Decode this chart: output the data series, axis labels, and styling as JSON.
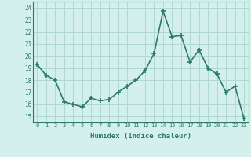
{
  "x": [
    0,
    1,
    2,
    3,
    4,
    5,
    6,
    7,
    8,
    9,
    10,
    11,
    12,
    13,
    14,
    15,
    16,
    17,
    18,
    19,
    20,
    21,
    22,
    23
  ],
  "y": [
    19.3,
    18.4,
    18.0,
    16.2,
    16.0,
    15.8,
    16.5,
    16.3,
    16.4,
    17.0,
    17.5,
    18.0,
    18.8,
    20.2,
    23.7,
    21.6,
    21.7,
    19.5,
    20.5,
    19.0,
    18.5,
    17.0,
    17.5,
    14.8
  ],
  "line_color": "#2d7a68",
  "marker": "+",
  "marker_size": 4,
  "bg_color": "#d4f0ec",
  "grid_color": "#b0d9d3",
  "xlabel": "Humidex (Indice chaleur)",
  "ylim": [
    14.5,
    24.5
  ],
  "yticks": [
    15,
    16,
    17,
    18,
    19,
    20,
    21,
    22,
    23,
    24
  ],
  "xtick_labels": [
    "0",
    "1",
    "2",
    "3",
    "4",
    "5",
    "6",
    "7",
    "8",
    "9",
    "10",
    "11",
    "12",
    "13",
    "14",
    "15",
    "16",
    "17",
    "18",
    "19",
    "20",
    "21",
    "22",
    "23"
  ],
  "font_color": "#2d7a68",
  "spine_color": "#2d7a68",
  "linewidth": 1.2,
  "marker_linewidth": 1.2
}
